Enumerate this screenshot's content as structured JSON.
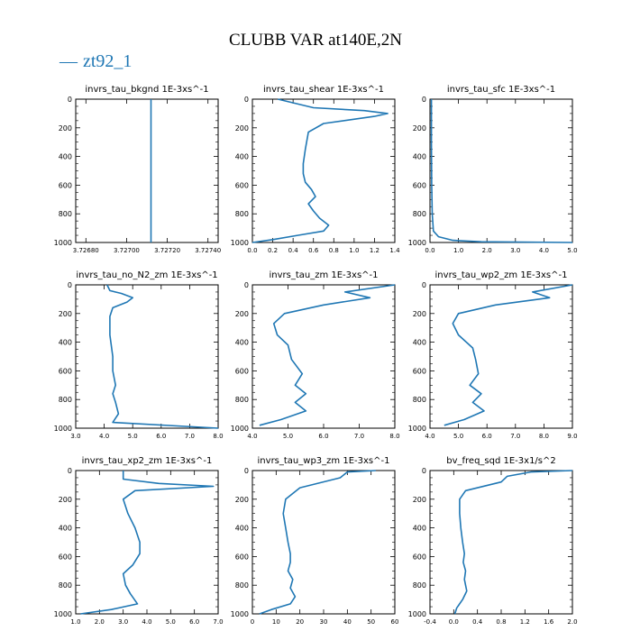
{
  "figure": {
    "title": "CLUBB VAR at140E,2N",
    "legend": {
      "line": "zt92_1",
      "color": "#1f77b4"
    }
  },
  "chart_data": [
    {
      "type": "line",
      "title": "invrs_tau_bkgnd   1E-3xs^-1",
      "xlim": [
        3.72675,
        3.72745
      ],
      "ylim": [
        1000,
        0
      ],
      "xticks": [
        "3.72680",
        "3.72700",
        "3.72720",
        "3.72740"
      ],
      "xtick_values": [
        3.7268,
        3.727,
        3.7272,
        3.7274
      ],
      "yticks": [
        0,
        200,
        400,
        600,
        800,
        1000
      ],
      "series": [
        {
          "name": "zt92_1",
          "x": [
            3.72712,
            3.72712
          ],
          "y": [
            0,
            1000
          ]
        }
      ]
    },
    {
      "type": "line",
      "title": "invrs_tau_shear   1E-3xs^-1",
      "xlim": [
        0,
        1.4
      ],
      "ylim": [
        1000,
        0
      ],
      "xticks": [
        "0.0",
        "0.2",
        "0.4",
        "0.6",
        "0.8",
        "1.0",
        "1.2",
        "1.4"
      ],
      "xtick_values": [
        0,
        0.2,
        0.4,
        0.6,
        0.8,
        1.0,
        1.2,
        1.4
      ],
      "yticks": [
        0,
        200,
        400,
        600,
        800,
        1000
      ],
      "series": [
        {
          "name": "zt92_1",
          "x": [
            0.25,
            0.6,
            1.1,
            1.33,
            1.2,
            0.7,
            0.55,
            0.52,
            0.5,
            0.5,
            0.52,
            0.58,
            0.62,
            0.55,
            0.6,
            0.66,
            0.75,
            0.7,
            0.45,
            0.2,
            0.0
          ],
          "y": [
            0,
            60,
            80,
            100,
            120,
            170,
            230,
            350,
            450,
            520,
            580,
            630,
            680,
            730,
            780,
            830,
            880,
            920,
            950,
            980,
            1000
          ]
        }
      ]
    },
    {
      "type": "line",
      "title": "invrs_tau_sfc   1E-3xs^-1",
      "xlim": [
        0,
        5
      ],
      "ylim": [
        1000,
        0
      ],
      "xticks": [
        "0.0",
        "1.0",
        "2.0",
        "3.0",
        "4.0",
        "5.0"
      ],
      "xtick_values": [
        0,
        1,
        2,
        3,
        4,
        5
      ],
      "yticks": [
        0,
        200,
        400,
        600,
        800,
        1000
      ],
      "series": [
        {
          "name": "zt92_1",
          "x": [
            0.05,
            0.05,
            0.06,
            0.08,
            0.12,
            0.3,
            0.8,
            1.8,
            5.0
          ],
          "y": [
            0,
            300,
            600,
            800,
            920,
            960,
            985,
            995,
            1000
          ]
        }
      ]
    },
    {
      "type": "line",
      "title": "invrs_tau_no_N2_zm   1E-3xs^-1",
      "xlim": [
        3.0,
        8.0
      ],
      "ylim": [
        1000,
        0
      ],
      "xticks": [
        "3.0",
        "4.0",
        "5.0",
        "6.0",
        "7.0",
        "8.0"
      ],
      "xtick_values": [
        3,
        4,
        5,
        6,
        7,
        8
      ],
      "yticks": [
        0,
        200,
        400,
        600,
        800,
        1000
      ],
      "series": [
        {
          "name": "zt92_1",
          "x": [
            4.1,
            4.2,
            4.6,
            5.0,
            4.8,
            4.3,
            4.2,
            4.2,
            4.3,
            4.3,
            4.4,
            4.3,
            4.4,
            4.5,
            4.3,
            8.0
          ],
          "y": [
            0,
            40,
            60,
            90,
            120,
            160,
            220,
            350,
            500,
            600,
            700,
            760,
            820,
            900,
            960,
            1000
          ]
        }
      ]
    },
    {
      "type": "line",
      "title": "invrs_tau_zm   1E-3xs^-1",
      "xlim": [
        4.0,
        8.0
      ],
      "ylim": [
        1000,
        0
      ],
      "xticks": [
        "4.0",
        "5.0",
        "6.0",
        "7.0",
        "8.0"
      ],
      "xtick_values": [
        4,
        5,
        6,
        7,
        8
      ],
      "yticks": [
        0,
        200,
        400,
        600,
        800,
        1000
      ],
      "series": [
        {
          "name": "zt92_1",
          "x": [
            8.0,
            6.6,
            7.3,
            6.0,
            4.9,
            4.6,
            4.7,
            5.0,
            5.1,
            5.4,
            5.2,
            5.5,
            5.2,
            5.5,
            4.8,
            4.2
          ],
          "y": [
            0,
            50,
            90,
            140,
            200,
            270,
            350,
            420,
            520,
            620,
            700,
            760,
            820,
            880,
            940,
            980
          ]
        }
      ]
    },
    {
      "type": "line",
      "title": "invrs_tau_wp2_zm   1E-3xs^-1",
      "xlim": [
        4.0,
        9.0
      ],
      "ylim": [
        1000,
        0
      ],
      "xticks": [
        "4.0",
        "5.0",
        "6.0",
        "7.0",
        "8.0",
        "9.0"
      ],
      "xtick_values": [
        4,
        5,
        6,
        7,
        8,
        9
      ],
      "yticks": [
        0,
        200,
        400,
        600,
        800,
        1000
      ],
      "series": [
        {
          "name": "zt92_1",
          "x": [
            9.0,
            7.6,
            8.2,
            6.3,
            5.0,
            4.8,
            5.0,
            5.5,
            5.6,
            5.7,
            5.4,
            5.8,
            5.5,
            5.9,
            5.2,
            4.5
          ],
          "y": [
            0,
            50,
            90,
            140,
            200,
            270,
            350,
            440,
            520,
            620,
            700,
            760,
            820,
            880,
            940,
            980
          ]
        }
      ]
    },
    {
      "type": "line",
      "title": "invrs_tau_xp2_zm   1E-3xs^-1",
      "xlim": [
        1.0,
        7.0
      ],
      "ylim": [
        1000,
        0
      ],
      "xticks": [
        "1.0",
        "2.0",
        "3.0",
        "4.0",
        "5.0",
        "6.0",
        "7.0"
      ],
      "xtick_values": [
        1,
        2,
        3,
        4,
        5,
        6,
        7
      ],
      "yticks": [
        0,
        200,
        400,
        600,
        800,
        1000
      ],
      "series": [
        {
          "name": "zt92_1",
          "x": [
            3.0,
            3.0,
            4.5,
            6.8,
            3.5,
            3.0,
            3.2,
            3.5,
            3.7,
            3.7,
            3.4,
            3.0,
            3.1,
            3.3,
            3.6,
            2.5,
            1.2
          ],
          "y": [
            0,
            60,
            90,
            110,
            140,
            200,
            300,
            400,
            500,
            580,
            660,
            720,
            800,
            860,
            930,
            970,
            1000
          ]
        }
      ]
    },
    {
      "type": "line",
      "title": "invrs_tau_wp3_zm   1E-3xs^-1",
      "xlim": [
        0,
        60
      ],
      "ylim": [
        1000,
        0
      ],
      "xticks": [
        "0",
        "10",
        "20",
        "30",
        "40",
        "50",
        "60"
      ],
      "xtick_values": [
        0,
        10,
        20,
        30,
        40,
        50,
        60
      ],
      "yticks": [
        0,
        200,
        400,
        600,
        800,
        1000
      ],
      "series": [
        {
          "name": "zt92_1",
          "x": [
            52,
            40,
            37,
            20,
            14,
            13,
            14,
            15,
            16,
            16,
            15,
            17,
            16,
            18,
            16,
            8,
            3
          ],
          "y": [
            0,
            10,
            50,
            120,
            200,
            300,
            400,
            500,
            580,
            640,
            700,
            760,
            820,
            880,
            930,
            970,
            1000
          ]
        }
      ]
    },
    {
      "type": "line",
      "title": "bv_freq_sqd   1E-3x1/s^2",
      "xlim": [
        -0.4,
        2.0
      ],
      "ylim": [
        1000,
        0
      ],
      "xticks": [
        "-0.4",
        "0.0",
        "0.4",
        "0.8",
        "1.2",
        "1.6",
        "2.0"
      ],
      "xtick_values": [
        -0.4,
        0,
        0.4,
        0.8,
        1.2,
        1.6,
        2.0
      ],
      "yticks": [
        0,
        200,
        400,
        600,
        800,
        1000
      ],
      "series": [
        {
          "name": "zt92_1",
          "x": [
            2.0,
            1.3,
            0.9,
            0.8,
            0.2,
            0.1,
            0.1,
            0.12,
            0.15,
            0.18,
            0.16,
            0.2,
            0.18,
            0.22,
            0.15,
            0.05,
            0.02
          ],
          "y": [
            0,
            10,
            40,
            80,
            140,
            200,
            300,
            400,
            500,
            580,
            640,
            700,
            760,
            840,
            900,
            960,
            1000
          ]
        }
      ]
    }
  ]
}
